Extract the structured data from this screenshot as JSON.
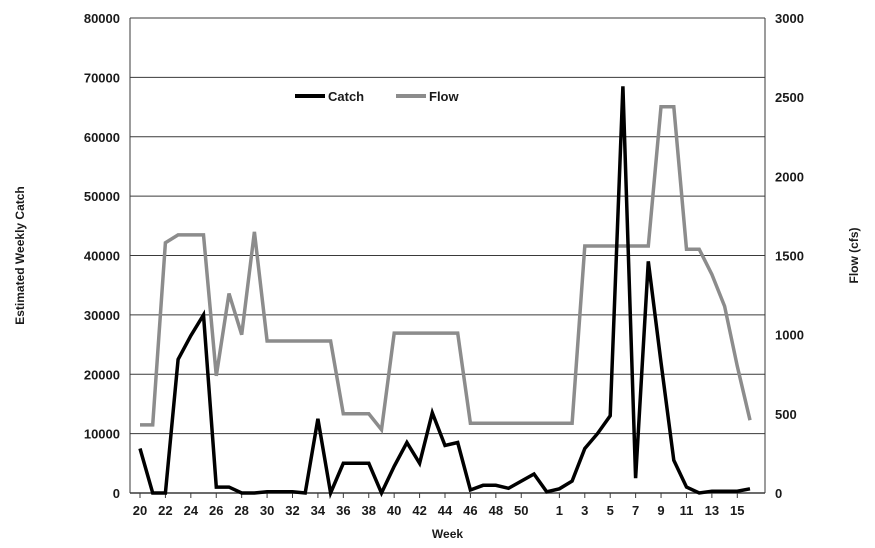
{
  "chart_data": {
    "type": "line",
    "title": "",
    "xlabel": "Week",
    "ylabel": "Estimated Weekly Catch",
    "y2label": "Flow (cfs)",
    "x": [
      "20",
      "21",
      "22",
      "23",
      "24",
      "25",
      "26",
      "27",
      "28",
      "29",
      "30",
      "31",
      "32",
      "33",
      "34",
      "35",
      "36",
      "37",
      "38",
      "39",
      "40",
      "41",
      "42",
      "43",
      "44",
      "45",
      "46",
      "47",
      "48",
      "49",
      "50",
      "51",
      "52",
      "1",
      "2",
      "3",
      "4",
      "5",
      "6",
      "7",
      "8",
      "9",
      "10",
      "11",
      "12",
      "13",
      "14",
      "15",
      "16"
    ],
    "x_tick_labels": [
      "20",
      "22",
      "24",
      "26",
      "28",
      "30",
      "32",
      "34",
      "36",
      "38",
      "40",
      "42",
      "44",
      "46",
      "48",
      "50",
      "1",
      "3",
      "5",
      "7",
      "9",
      "11",
      "13",
      "15"
    ],
    "ylim": [
      0,
      80000
    ],
    "y_ticks": [
      0,
      10000,
      20000,
      30000,
      40000,
      50000,
      60000,
      70000,
      80000
    ],
    "y2lim": [
      0,
      3000
    ],
    "y2_ticks": [
      0,
      500,
      1000,
      1500,
      2000,
      2500,
      3000
    ],
    "grid": true,
    "legend_position": "top-left",
    "series": [
      {
        "name": "Catch",
        "axis": "left",
        "color": "#000000",
        "values": [
          7500,
          0,
          0,
          22500,
          26500,
          30000,
          1000,
          1000,
          0,
          0,
          200,
          200,
          200,
          0,
          12500,
          0,
          5000,
          5000,
          5000,
          0,
          4500,
          8500,
          5000,
          13500,
          8000,
          8500,
          500,
          1300,
          1300,
          800,
          2000,
          3200,
          200,
          700,
          2000,
          7500,
          10000,
          13000,
          68500,
          2500,
          39000,
          22000,
          5500,
          1000,
          0,
          300,
          300,
          300,
          700
        ]
      },
      {
        "name": "Flow",
        "axis": "right",
        "color": "#8c8c8c",
        "values": [
          430,
          430,
          1580,
          1630,
          1630,
          1630,
          740,
          1260,
          1000,
          1650,
          960,
          960,
          960,
          960,
          960,
          960,
          500,
          500,
          500,
          400,
          1010,
          1010,
          1010,
          1010,
          1010,
          1010,
          440,
          440,
          440,
          440,
          440,
          440,
          440,
          440,
          440,
          1560,
          1560,
          1560,
          1560,
          1560,
          1560,
          2440,
          2440,
          1540,
          1540,
          1380,
          1180,
          800,
          460
        ]
      }
    ]
  }
}
